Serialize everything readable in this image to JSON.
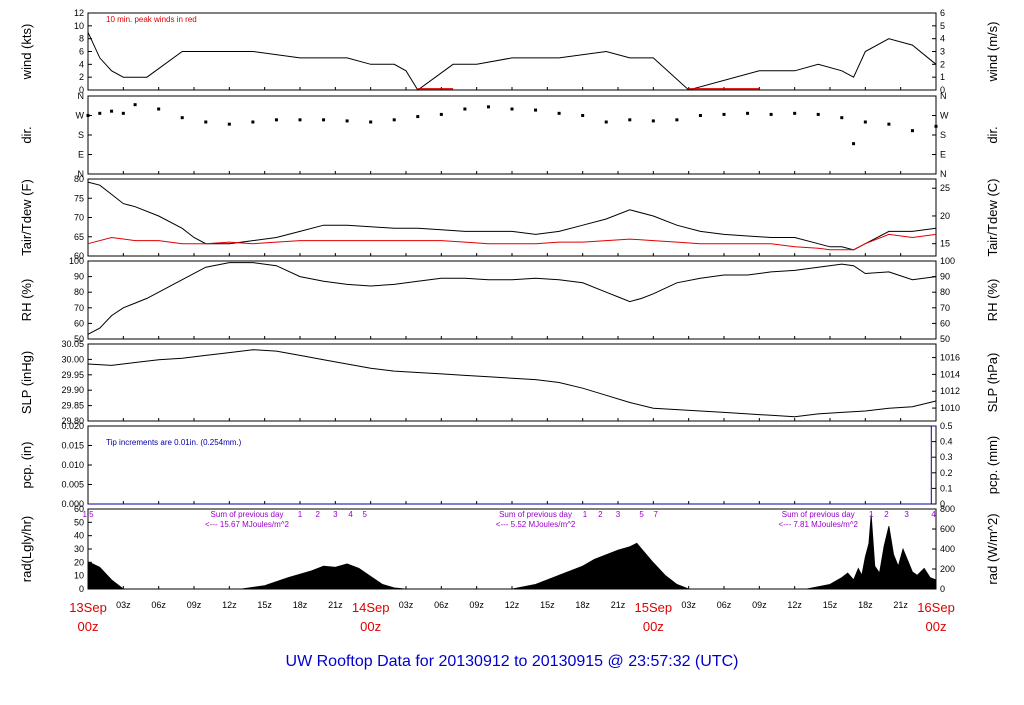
{
  "footer_title": "UW Rooftop Data for 20130912  to  20130915 @ 23:57:32  (UTC)",
  "time_axis": {
    "hour_ticks": [
      "03z",
      "06z",
      "09z",
      "12z",
      "15z",
      "18z",
      "21z"
    ],
    "day_labels": [
      {
        "date": "13Sep",
        "time": "00z"
      },
      {
        "date": "14Sep",
        "time": "00z"
      },
      {
        "date": "15Sep",
        "time": "00z"
      },
      {
        "date": "16Sep",
        "time": "00z"
      }
    ],
    "range_hours": [
      0,
      72
    ]
  },
  "colors": {
    "accent_red": "#e00000",
    "title_blue": "#0000cc",
    "note_blue": "#0000aa",
    "purple": "#9900cc",
    "series": "#000000"
  },
  "chart_data": [
    {
      "type": "line",
      "ylabel": "wind (kts)",
      "ylabel_right": "wind (m/s)",
      "ylim": [
        0,
        12
      ],
      "ylim_right": [
        0,
        6
      ],
      "yticks": [
        "0",
        "2",
        "4",
        "6",
        "8",
        "10",
        "12"
      ],
      "yticks_right": [
        "0",
        "1",
        "2",
        "3",
        "4",
        "5",
        "6"
      ],
      "annotation": "10 min. peak winds in red",
      "data_gaps_hours": [
        [
          28,
          31
        ],
        [
          51,
          57
        ]
      ],
      "series": [
        {
          "name": "wind",
          "x": [
            0,
            1,
            2,
            3,
            5,
            8,
            10,
            14,
            18,
            22,
            24,
            26,
            27,
            28,
            31,
            33,
            36,
            40,
            44,
            46,
            48,
            51,
            57,
            60,
            62,
            64,
            65,
            66,
            68,
            70,
            72
          ],
          "y": [
            9,
            5,
            3,
            2,
            2,
            6,
            6,
            6,
            5,
            5,
            4,
            4,
            3,
            0,
            4,
            4,
            5,
            5,
            6,
            5,
            5,
            0,
            3,
            3,
            4,
            3,
            2,
            6,
            8,
            7,
            4
          ]
        }
      ]
    },
    {
      "type": "scatter",
      "ylabel": "dir.",
      "ylabel_right": "dir.",
      "yticks": [
        "N",
        "E",
        "S",
        "W",
        "N"
      ],
      "x": [
        0,
        1,
        2,
        3,
        4,
        6,
        8,
        10,
        12,
        14,
        16,
        18,
        20,
        22,
        24,
        26,
        28,
        30,
        32,
        34,
        36,
        38,
        40,
        42,
        44,
        46,
        48,
        50,
        52,
        54,
        56,
        58,
        60,
        62,
        64,
        65,
        66,
        68,
        70,
        72
      ],
      "y": [
        270,
        280,
        290,
        280,
        320,
        300,
        260,
        240,
        230,
        240,
        250,
        250,
        250,
        245,
        240,
        250,
        265,
        275,
        300,
        310,
        300,
        295,
        280,
        270,
        240,
        250,
        245,
        250,
        270,
        275,
        280,
        275,
        280,
        275,
        260,
        140,
        240,
        230,
        200,
        220
      ]
    },
    {
      "type": "line",
      "ylabel": "Tair/Tdew (F)",
      "ylabel_right": "Tair/Tdew (C)",
      "ylim": [
        55,
        80
      ],
      "yticks": [
        "60",
        "65",
        "70",
        "75",
        "80"
      ],
      "yticks_right": [
        "15",
        "20",
        "25"
      ],
      "series": [
        {
          "name": "Tair",
          "x": [
            0,
            1,
            2,
            3,
            4,
            6,
            8,
            9,
            10,
            12,
            14,
            16,
            18,
            20,
            22,
            24,
            26,
            28,
            30,
            32,
            34,
            36,
            38,
            40,
            42,
            44,
            46,
            48,
            50,
            52,
            54,
            56,
            58,
            60,
            62,
            63,
            64,
            65,
            66,
            68,
            70,
            72
          ],
          "y": [
            79,
            78,
            75,
            72,
            71,
            68,
            64,
            61,
            59,
            59,
            60,
            61,
            63,
            65,
            65,
            64.5,
            64,
            64,
            63.5,
            63,
            63,
            63,
            62,
            63,
            65,
            67,
            70,
            68,
            65,
            63,
            62,
            61.5,
            61,
            61,
            59,
            58,
            58,
            57,
            59,
            63,
            63,
            64
          ]
        },
        {
          "name": "Tdew",
          "x": [
            0,
            2,
            4,
            6,
            8,
            10,
            12,
            14,
            16,
            18,
            20,
            22,
            24,
            26,
            28,
            30,
            32,
            34,
            36,
            38,
            40,
            42,
            44,
            46,
            48,
            50,
            52,
            54,
            56,
            58,
            60,
            62,
            63,
            64,
            65,
            66,
            68,
            70,
            72
          ],
          "y": [
            59,
            61,
            60,
            60,
            59,
            59,
            59.5,
            59,
            59.5,
            60,
            60,
            60,
            60,
            60,
            60,
            60,
            59.5,
            59,
            59,
            59,
            59.5,
            59.5,
            60,
            60.5,
            60,
            59.5,
            59,
            59,
            59,
            59,
            58,
            57.5,
            57,
            57,
            57,
            59,
            62,
            61,
            62
          ]
        }
      ]
    },
    {
      "type": "line",
      "ylabel": "RH (%)",
      "ylabel_right": "RH (%)",
      "ylim": [
        50,
        100
      ],
      "yticks": [
        "50",
        "60",
        "70",
        "80",
        "90",
        "100"
      ],
      "series": [
        {
          "name": "RH",
          "x": [
            0,
            1,
            2,
            3,
            4,
            5,
            6,
            8,
            10,
            12,
            14,
            16,
            18,
            20,
            22,
            24,
            26,
            28,
            30,
            32,
            34,
            36,
            38,
            40,
            42,
            44,
            45,
            46,
            47,
            48,
            50,
            52,
            54,
            56,
            58,
            60,
            62,
            64,
            65,
            66,
            68,
            70,
            72
          ],
          "y": [
            53,
            57,
            65,
            70,
            73,
            76,
            80,
            88,
            96,
            99,
            99,
            97,
            90,
            87,
            85,
            84,
            85,
            87,
            89,
            89,
            88,
            88,
            89,
            88,
            86,
            80,
            77,
            74,
            76,
            79,
            86,
            89,
            91,
            91,
            93,
            94,
            96,
            98,
            97,
            92,
            93,
            88,
            90
          ]
        }
      ]
    },
    {
      "type": "line",
      "ylabel": "SLP (inHg)",
      "ylabel_right": "SLP (hPa)",
      "ylim": [
        29.78,
        30.05
      ],
      "yticks": [
        "29.80",
        "29.85",
        "29.90",
        "29.95",
        "30.00",
        "30.05"
      ],
      "yticks_right": [
        "1010",
        "1012",
        "1014",
        "1016"
      ],
      "series": [
        {
          "name": "SLP",
          "x": [
            0,
            2,
            4,
            6,
            8,
            10,
            12,
            14,
            16,
            18,
            20,
            22,
            24,
            26,
            28,
            30,
            32,
            34,
            36,
            38,
            40,
            42,
            44,
            46,
            48,
            50,
            52,
            54,
            56,
            58,
            60,
            62,
            64,
            66,
            68,
            70,
            72
          ],
          "y": [
            29.98,
            29.975,
            29.985,
            29.995,
            30.0,
            30.01,
            30.02,
            30.03,
            30.025,
            30.01,
            29.995,
            29.98,
            29.965,
            29.955,
            29.95,
            29.945,
            29.94,
            29.935,
            29.93,
            29.925,
            29.915,
            29.895,
            29.87,
            29.845,
            29.825,
            29.82,
            29.815,
            29.81,
            29.805,
            29.8,
            29.795,
            29.805,
            29.81,
            29.815,
            29.825,
            29.83,
            29.85
          ]
        }
      ]
    },
    {
      "type": "line",
      "ylabel": "pcp. (in)",
      "ylabel_right": "pcp. (mm)",
      "ylim": [
        0,
        0.02
      ],
      "yticks": [
        "0.000",
        "0.005",
        "0.010",
        "0.015",
        "0.020"
      ],
      "yticks_right": [
        "0",
        "0.1",
        "0.2",
        "0.3",
        "0.4",
        "0.5"
      ],
      "annotation": "Tip increments are 0.01in. (0.254mm.)",
      "series": [
        {
          "name": "pcp",
          "x": [
            0,
            71.6,
            71.6,
            72
          ],
          "y": [
            0,
            0,
            0.02,
            0.02
          ]
        }
      ]
    },
    {
      "type": "area",
      "ylabel": "rad(Lgly/hr)",
      "ylabel_right": "rad (W/m^2)",
      "ylim": [
        0,
        70
      ],
      "yticks": [
        "0",
        "10",
        "20",
        "30",
        "40",
        "50",
        "60"
      ],
      "yticks_right": [
        "0",
        "200",
        "400",
        "600",
        "800"
      ],
      "annotations": [
        {
          "at_hour": 13.5,
          "line1": "Sum of previous day",
          "line2": "<--- 15.67 MJoules/m^2"
        },
        {
          "at_hour": 38,
          "line1": "Sum of previous day",
          "line2": "<--- 5.52 MJoules/m^2"
        },
        {
          "at_hour": 62,
          "line1": "Sum of previous day",
          "line2": "<--- 7.81 MJoules/m^2"
        }
      ],
      "hour_markers": [
        {
          "at_hour": 0,
          "label": "1 5"
        },
        {
          "at_hour": 18,
          "label": "1"
        },
        {
          "at_hour": 19.5,
          "label": "2"
        },
        {
          "at_hour": 21,
          "label": "3"
        },
        {
          "at_hour": 22.3,
          "label": "4"
        },
        {
          "at_hour": 23.5,
          "label": "5"
        },
        {
          "at_hour": 42.2,
          "label": "1"
        },
        {
          "at_hour": 43.5,
          "label": "2"
        },
        {
          "at_hour": 45,
          "label": "3"
        },
        {
          "at_hour": 47,
          "label": "5"
        },
        {
          "at_hour": 48.2,
          "label": "7"
        },
        {
          "at_hour": 66.5,
          "label": "1"
        },
        {
          "at_hour": 67.8,
          "label": "2"
        },
        {
          "at_hour": 69.5,
          "label": "3"
        },
        {
          "at_hour": 71.8,
          "label": "4"
        }
      ],
      "series": [
        {
          "name": "rad",
          "x": [
            0,
            1,
            2,
            3,
            13,
            15,
            17,
            19,
            20,
            21,
            22,
            23,
            24,
            25,
            26,
            27,
            36,
            38,
            40,
            42,
            43,
            44,
            45,
            46,
            46.6,
            47,
            48,
            49,
            50,
            51,
            61,
            63,
            64,
            64.5,
            65,
            65.4,
            65.7,
            66,
            66.3,
            66.5,
            66.8,
            67.2,
            67.6,
            68,
            68.4,
            68.8,
            69.2,
            69.6,
            70,
            70.4,
            71,
            71.5,
            72
          ],
          "y": [
            24,
            19,
            8,
            0,
            0,
            3,
            10,
            16,
            20,
            19,
            22,
            18,
            11,
            4,
            1,
            0,
            0,
            4,
            12,
            20,
            26,
            30,
            34,
            37,
            40,
            35,
            23,
            12,
            4,
            0,
            0,
            4,
            10,
            14,
            8,
            18,
            12,
            28,
            40,
            65,
            20,
            14,
            38,
            55,
            30,
            20,
            35,
            25,
            15,
            12,
            18,
            10,
            8
          ]
        }
      ]
    }
  ]
}
